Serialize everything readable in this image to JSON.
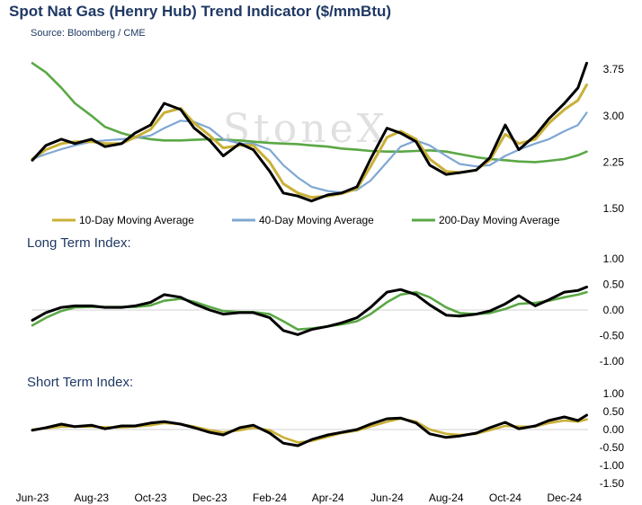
{
  "title": "Spot Nat Gas (Henry Hub) Trend Indicator ($/mmBtu)",
  "source": "Source: Bloomberg / CME",
  "watermark": "StoneX",
  "colors": {
    "price": "#000000",
    "ma10": "#c9b037",
    "ma40": "#7fa7d3",
    "ma200": "#5aa845",
    "long_index": "#000000",
    "long_signal": "#5aa845",
    "short_index": "#000000",
    "short_signal": "#c9b037",
    "title": "#1f3864"
  },
  "chart_data": [
    {
      "type": "line",
      "name": "price-panel",
      "x_labels": [
        "Jun-23",
        "Aug-23",
        "Oct-23",
        "Dec-23",
        "Feb-24",
        "Apr-24",
        "Jun-24",
        "Aug-24",
        "Oct-24",
        "Dec-24"
      ],
      "x": [
        "2023-06-01",
        "2023-06-15",
        "2023-07-01",
        "2023-07-15",
        "2023-08-01",
        "2023-08-15",
        "2023-09-01",
        "2023-09-15",
        "2023-10-01",
        "2023-10-15",
        "2023-11-01",
        "2023-11-15",
        "2023-12-01",
        "2023-12-15",
        "2024-01-01",
        "2024-01-15",
        "2024-02-01",
        "2024-02-15",
        "2024-03-01",
        "2024-03-15",
        "2024-04-01",
        "2024-04-15",
        "2024-05-01",
        "2024-05-15",
        "2024-06-01",
        "2024-06-15",
        "2024-07-01",
        "2024-07-15",
        "2024-08-01",
        "2024-08-15",
        "2024-09-01",
        "2024-09-15",
        "2024-10-01",
        "2024-10-15",
        "2024-11-01",
        "2024-11-15",
        "2024-12-01",
        "2024-12-15",
        "2024-12-24"
      ],
      "ylim": [
        1.5,
        4.0
      ],
      "yticks": [
        "1.50",
        "2.25",
        "3.00",
        "3.75"
      ],
      "series": [
        {
          "key": "price",
          "values": [
            2.28,
            2.52,
            2.62,
            2.55,
            2.62,
            2.5,
            2.55,
            2.72,
            2.85,
            3.2,
            3.1,
            2.8,
            2.6,
            2.35,
            2.55,
            2.45,
            2.1,
            1.75,
            1.7,
            1.62,
            1.72,
            1.75,
            1.85,
            2.3,
            2.8,
            2.72,
            2.58,
            2.2,
            2.05,
            2.08,
            2.12,
            2.32,
            2.85,
            2.45,
            2.68,
            2.95,
            3.2,
            3.45,
            3.85
          ]
        },
        {
          "key": "ma10",
          "name": "10-Day Moving Average",
          "values": [
            2.3,
            2.45,
            2.55,
            2.58,
            2.58,
            2.55,
            2.55,
            2.65,
            2.78,
            3.05,
            3.12,
            2.88,
            2.68,
            2.48,
            2.52,
            2.52,
            2.25,
            1.9,
            1.75,
            1.68,
            1.7,
            1.74,
            1.82,
            2.18,
            2.65,
            2.75,
            2.62,
            2.3,
            2.1,
            2.08,
            2.12,
            2.28,
            2.7,
            2.55,
            2.62,
            2.88,
            3.1,
            3.25,
            3.5
          ]
        },
        {
          "key": "ma40",
          "name": "40-Day Moving Average",
          "values": [
            2.3,
            2.38,
            2.46,
            2.52,
            2.58,
            2.6,
            2.62,
            2.64,
            2.68,
            2.8,
            2.92,
            2.9,
            2.8,
            2.62,
            2.55,
            2.55,
            2.45,
            2.2,
            2.0,
            1.85,
            1.78,
            1.76,
            1.8,
            1.95,
            2.25,
            2.5,
            2.6,
            2.52,
            2.35,
            2.22,
            2.18,
            2.2,
            2.35,
            2.45,
            2.55,
            2.62,
            2.75,
            2.85,
            3.05
          ]
        },
        {
          "key": "ma200",
          "name": "200-Day Moving Average",
          "values": [
            3.85,
            3.7,
            3.45,
            3.2,
            3.0,
            2.82,
            2.72,
            2.66,
            2.62,
            2.6,
            2.6,
            2.61,
            2.62,
            2.61,
            2.6,
            2.58,
            2.56,
            2.55,
            2.54,
            2.52,
            2.5,
            2.47,
            2.45,
            2.43,
            2.42,
            2.42,
            2.43,
            2.44,
            2.42,
            2.38,
            2.33,
            2.3,
            2.28,
            2.26,
            2.25,
            2.27,
            2.3,
            2.36,
            2.42
          ]
        }
      ]
    },
    {
      "type": "line",
      "name": "long-term-index",
      "title": "Long Term Index:",
      "ylim": [
        -1.0,
        1.0
      ],
      "yticks": [
        "1.00",
        "0.50",
        "0.00",
        "-0.50",
        "-1.00"
      ],
      "series": [
        {
          "key": "long_index",
          "values": [
            -0.2,
            -0.05,
            0.05,
            0.08,
            0.08,
            0.05,
            0.05,
            0.08,
            0.15,
            0.3,
            0.25,
            0.12,
            0.0,
            -0.08,
            -0.05,
            -0.05,
            -0.15,
            -0.4,
            -0.48,
            -0.38,
            -0.32,
            -0.25,
            -0.15,
            0.05,
            0.35,
            0.4,
            0.3,
            0.1,
            -0.1,
            -0.12,
            -0.08,
            -0.02,
            0.12,
            0.28,
            0.08,
            0.2,
            0.35,
            0.38,
            0.45
          ]
        },
        {
          "key": "long_signal",
          "values": [
            -0.3,
            -0.15,
            -0.02,
            0.05,
            0.06,
            0.06,
            0.06,
            0.06,
            0.09,
            0.18,
            0.22,
            0.16,
            0.06,
            -0.02,
            -0.04,
            -0.04,
            -0.08,
            -0.22,
            -0.38,
            -0.36,
            -0.32,
            -0.28,
            -0.22,
            -0.08,
            0.15,
            0.3,
            0.35,
            0.25,
            0.05,
            -0.06,
            -0.08,
            -0.06,
            0.02,
            0.12,
            0.14,
            0.18,
            0.25,
            0.3,
            0.35
          ]
        }
      ]
    },
    {
      "type": "line",
      "name": "short-term-index",
      "title": "Short Term Index:",
      "ylim": [
        -1.5,
        1.0
      ],
      "yticks": [
        "1.00",
        "0.50",
        "0.00",
        "-0.50",
        "-1.00",
        "-1.50"
      ],
      "series": [
        {
          "key": "short_index",
          "values": [
            -0.02,
            0.05,
            0.15,
            0.08,
            0.12,
            0.02,
            0.1,
            0.1,
            0.18,
            0.22,
            0.15,
            0.05,
            -0.08,
            -0.15,
            0.05,
            0.12,
            -0.1,
            -0.38,
            -0.45,
            -0.28,
            -0.15,
            -0.08,
            0.0,
            0.15,
            0.3,
            0.32,
            0.18,
            -0.12,
            -0.22,
            -0.18,
            -0.1,
            0.05,
            0.2,
            0.02,
            0.1,
            0.25,
            0.35,
            0.25,
            0.4
          ]
        },
        {
          "key": "short_signal",
          "values": [
            0.0,
            0.04,
            0.08,
            0.08,
            0.08,
            0.06,
            0.06,
            0.08,
            0.12,
            0.18,
            0.15,
            0.08,
            -0.02,
            -0.08,
            -0.02,
            0.05,
            -0.02,
            -0.22,
            -0.36,
            -0.32,
            -0.2,
            -0.1,
            -0.03,
            0.08,
            0.22,
            0.3,
            0.22,
            0.0,
            -0.12,
            -0.15,
            -0.12,
            -0.02,
            0.1,
            0.08,
            0.08,
            0.18,
            0.25,
            0.22,
            0.28
          ]
        }
      ]
    }
  ]
}
